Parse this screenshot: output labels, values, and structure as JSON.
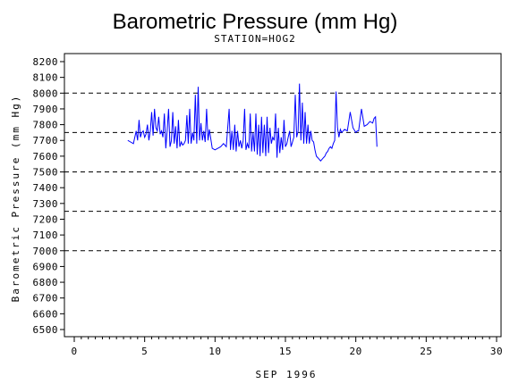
{
  "chart_data": {
    "type": "line",
    "title": "Barometric Pressure (mm Hg)",
    "subtitle": "STATION=HOG2",
    "xlabel": "SEP 1996",
    "ylabel": "Barometric Pressure (mm Hg)",
    "xlim": [
      0,
      30
    ],
    "ylim": [
      6500,
      8200
    ],
    "x_major_ticks": [
      0,
      5,
      10,
      15,
      20,
      25,
      30
    ],
    "x_tick_labels": [
      "0",
      "5",
      "10",
      "15",
      "20",
      "25",
      "30"
    ],
    "x_minor_step": 0.5,
    "y_ticks": [
      6500,
      6600,
      6700,
      6800,
      6900,
      7000,
      7100,
      7200,
      7300,
      7400,
      7500,
      7600,
      7700,
      7800,
      7900,
      8000,
      8100,
      8200
    ],
    "y_tick_labels": [
      "6500",
      "6600",
      "6700",
      "6800",
      "6900",
      "7000",
      "7100",
      "7200",
      "7300",
      "7400",
      "7500",
      "7600",
      "7700",
      "7800",
      "7900",
      "8000",
      "8100",
      "8200"
    ],
    "reference_lines": [
      7000,
      7250,
      7500,
      7750,
      8000
    ],
    "grid": false,
    "line_color": "#0000ff",
    "series": [
      {
        "x": [
          3.8,
          4.0,
          4.2,
          4.4,
          4.5,
          4.6,
          4.7,
          4.8,
          4.9,
          5.0,
          5.1,
          5.2,
          5.3,
          5.4,
          5.5,
          5.6,
          5.7,
          5.8,
          5.9,
          6.0,
          6.1,
          6.2,
          6.3,
          6.4,
          6.5,
          6.6,
          6.7,
          6.8,
          6.9,
          7.0,
          7.1,
          7.2,
          7.3,
          7.4,
          7.5,
          7.6,
          7.7,
          7.8,
          7.9,
          8.0,
          8.1,
          8.2,
          8.3,
          8.4,
          8.5,
          8.6,
          8.7,
          8.8,
          8.9,
          9.0,
          9.1,
          9.2,
          9.3,
          9.4,
          9.5,
          9.6,
          9.8,
          10.0,
          10.2,
          10.4,
          10.6,
          10.8,
          11.0,
          11.1,
          11.2,
          11.3,
          11.4,
          11.5,
          11.6,
          11.7,
          11.8,
          11.9,
          12.0,
          12.1,
          12.2,
          12.3,
          12.4,
          12.5,
          12.6,
          12.7,
          12.8,
          12.9,
          13.0,
          13.1,
          13.2,
          13.3,
          13.4,
          13.5,
          13.6,
          13.7,
          13.8,
          13.9,
          14.0,
          14.1,
          14.2,
          14.3,
          14.4,
          14.5,
          14.6,
          14.7,
          14.8,
          14.9,
          15.0,
          15.1,
          15.2,
          15.3,
          15.4,
          15.5,
          15.6,
          15.7,
          15.8,
          15.9,
          16.0,
          16.1,
          16.2,
          16.3,
          16.4,
          16.5,
          16.6,
          16.7,
          16.8,
          16.9,
          17.0,
          17.1,
          17.2,
          17.3,
          17.4,
          17.5,
          17.6,
          17.7,
          17.8,
          17.9,
          18.0,
          18.1,
          18.2,
          18.3,
          18.4,
          18.5,
          18.6,
          18.7,
          18.8,
          18.9,
          19.0,
          19.2,
          19.4,
          19.6,
          19.8,
          20.0,
          20.1,
          20.2,
          20.4,
          20.6,
          20.8,
          21.0,
          21.2,
          21.3,
          21.4,
          21.5
        ],
        "y": [
          7700,
          7690,
          7680,
          7760,
          7700,
          7830,
          7720,
          7750,
          7760,
          7720,
          7740,
          7800,
          7700,
          7760,
          7880,
          7730,
          7900,
          7780,
          7760,
          7850,
          7740,
          7760,
          7720,
          7870,
          7650,
          7760,
          7900,
          7660,
          7700,
          7880,
          7680,
          7790,
          7650,
          7830,
          7660,
          7690,
          7670,
          7680,
          7700,
          7860,
          7680,
          7900,
          7680,
          7750,
          7700,
          7990,
          7680,
          8040,
          7700,
          7810,
          7700,
          7760,
          7690,
          7900,
          7700,
          7770,
          7650,
          7640,
          7650,
          7660,
          7680,
          7660,
          7900,
          7640,
          7760,
          7640,
          7800,
          7630,
          7760,
          7660,
          7700,
          7650,
          7700,
          7900,
          7640,
          7680,
          7650,
          7870,
          7630,
          7750,
          7630,
          7870,
          7610,
          7800,
          7600,
          7850,
          7620,
          7800,
          7600,
          7850,
          7620,
          7780,
          7680,
          7720,
          7700,
          7870,
          7590,
          7780,
          7620,
          7720,
          7640,
          7830,
          7660,
          7680,
          7720,
          7760,
          7660,
          7690,
          7720,
          7990,
          7720,
          7760,
          8060,
          7700,
          7940,
          7680,
          7880,
          7680,
          7800,
          7680,
          7760,
          7700,
          7690,
          7640,
          7600,
          7590,
          7580,
          7570,
          7580,
          7590,
          7600,
          7620,
          7630,
          7650,
          7660,
          7650,
          7680,
          7700,
          8010,
          7780,
          7720,
          7770,
          7750,
          7770,
          7760,
          7880,
          7780,
          7750,
          7760,
          7760,
          7900,
          7790,
          7800,
          7820,
          7810,
          7840,
          7850,
          7660
        ]
      }
    ]
  }
}
